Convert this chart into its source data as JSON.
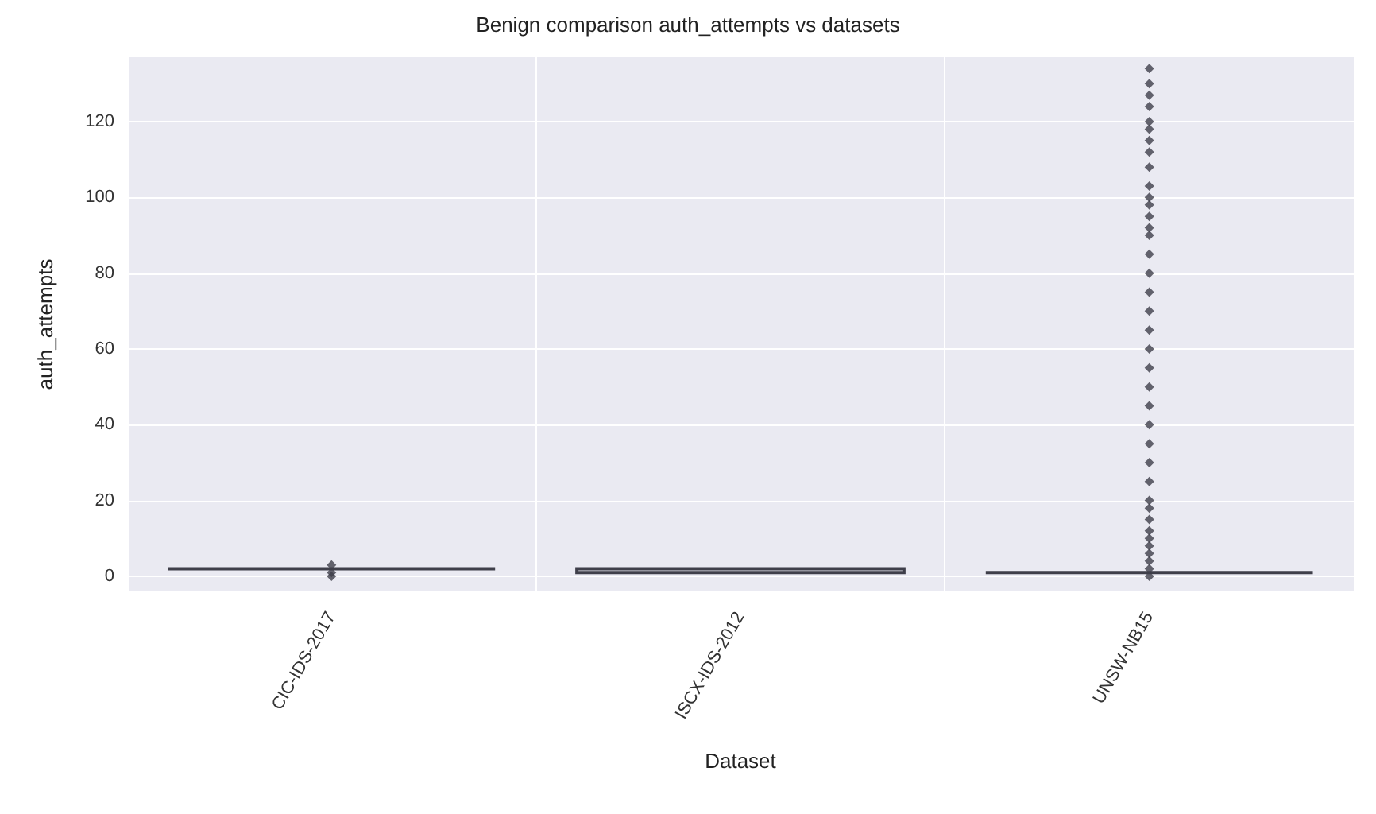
{
  "chart_data": {
    "type": "box",
    "title": "Benign comparison auth_attempts vs datasets",
    "xlabel": "Dataset",
    "ylabel": "auth_attempts",
    "categories": [
      "CIC-IDS-2017",
      "ISCX-IDS-2012",
      "UNSW-NB15"
    ],
    "boxes": [
      {
        "low": 2,
        "q1": 2,
        "median": 2,
        "q3": 2,
        "high": 2,
        "outliers": [
          0,
          1,
          3
        ]
      },
      {
        "low": 1,
        "q1": 1,
        "median": 2,
        "q3": 2,
        "high": 2
      },
      {
        "low": 1,
        "q1": 1,
        "median": 1,
        "q3": 1,
        "high": 1,
        "outliers": [
          0,
          2,
          4,
          6,
          8,
          10,
          12,
          15,
          18,
          20,
          25,
          30,
          35,
          40,
          45,
          50,
          55,
          60,
          65,
          70,
          75,
          80,
          85,
          90,
          92,
          95,
          98,
          100,
          103,
          108,
          112,
          115,
          118,
          120,
          124,
          127,
          130,
          134
        ]
      }
    ],
    "color": "#3f3f4a",
    "ylim": [
      -4,
      137
    ],
    "yticks": [
      0,
      20,
      40,
      60,
      80,
      100,
      120
    ],
    "grid": true
  }
}
